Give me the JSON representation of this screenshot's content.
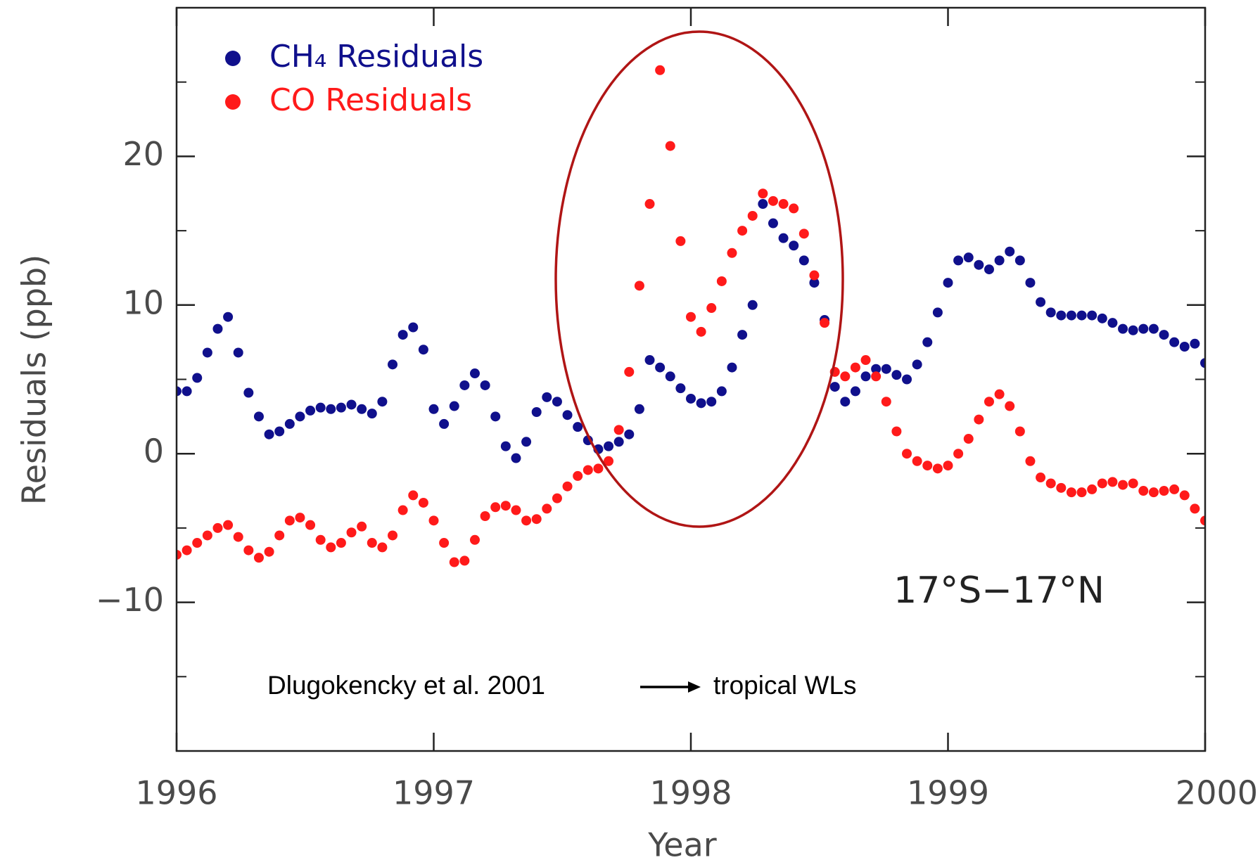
{
  "chart_data": {
    "type": "scatter",
    "xlabel": "Year",
    "ylabel": "Residuals (ppb)",
    "annotations": [
      "17°S−17°N",
      "Dlugokencky et al. 2001",
      "tropical WLs"
    ],
    "xlim": [
      1996,
      2000
    ],
    "xticks": [
      1996,
      1997,
      1998,
      1999,
      2000
    ],
    "ylim": [
      -20,
      30
    ],
    "yticks": [
      {
        "value": -10,
        "label": "−10"
      },
      0,
      10,
      20
    ],
    "yminorticks": [
      -15,
      -5,
      5,
      15,
      25
    ],
    "grid": false,
    "legend": "upper left",
    "x": [
      1996.0,
      1996.04,
      1996.08,
      1996.12,
      1996.16,
      1996.2,
      1996.24,
      1996.28,
      1996.32,
      1996.36,
      1996.4,
      1996.44,
      1996.48,
      1996.52,
      1996.56,
      1996.6,
      1996.64,
      1996.68,
      1996.72,
      1996.76,
      1996.8,
      1996.84,
      1996.88,
      1996.92,
      1996.96,
      1997.0,
      1997.04,
      1997.08,
      1997.12,
      1997.16,
      1997.2,
      1997.24,
      1997.28,
      1997.32,
      1997.36,
      1997.4,
      1997.44,
      1997.48,
      1997.52,
      1997.56,
      1997.6,
      1997.64,
      1997.68,
      1997.72,
      1997.76,
      1997.8,
      1997.84,
      1997.88,
      1997.92,
      1997.96,
      1998.0,
      1998.04,
      1998.08,
      1998.12,
      1998.16,
      1998.2,
      1998.24,
      1998.28,
      1998.32,
      1998.36,
      1998.4,
      1998.44,
      1998.48,
      1998.52,
      1998.56,
      1998.6,
      1998.64,
      1998.68,
      1998.72,
      1998.76,
      1998.8,
      1998.84,
      1998.88,
      1998.92,
      1998.96,
      1999.0,
      1999.04,
      1999.08,
      1999.12,
      1999.16,
      1999.2,
      1999.24,
      1999.28,
      1999.32,
      1999.36,
      1999.4,
      1999.44,
      1999.48,
      1999.52,
      1999.56,
      1999.6,
      1999.64,
      1999.68,
      1999.72,
      1999.76,
      1999.8,
      1999.84,
      1999.88,
      1999.92,
      1999.96,
      2000.0
    ],
    "series": [
      {
        "name": "CH₄ Residuals",
        "color": "#10108c",
        "values": [
          4.2,
          4.2,
          5.1,
          6.8,
          8.4,
          9.2,
          6.8,
          4.1,
          2.5,
          1.3,
          1.5,
          2.0,
          2.5,
          2.9,
          3.1,
          3.0,
          3.1,
          3.3,
          3.0,
          2.7,
          3.5,
          6.0,
          8.0,
          8.5,
          7.0,
          3.0,
          2.0,
          3.2,
          4.6,
          5.4,
          4.6,
          2.5,
          0.5,
          -0.3,
          0.8,
          2.8,
          3.8,
          3.5,
          2.6,
          1.8,
          0.9,
          0.3,
          0.5,
          0.8,
          1.3,
          3.0,
          6.3,
          5.8,
          5.2,
          4.4,
          3.7,
          3.4,
          3.5,
          4.2,
          5.8,
          8.0,
          10.0,
          16.8,
          15.5,
          14.5,
          14.0,
          13.0,
          11.5,
          9.0,
          4.5,
          3.5,
          4.2,
          5.2,
          5.7,
          5.7,
          5.3,
          5.0,
          6.0,
          7.5,
          9.5,
          11.5,
          13.0,
          13.2,
          12.7,
          12.4,
          13.0,
          13.6,
          13.0,
          11.5,
          10.2,
          9.5,
          9.3,
          9.3,
          9.3,
          9.3,
          9.1,
          8.8,
          8.4,
          8.3,
          8.4,
          8.4,
          8.0,
          7.5,
          7.2,
          7.4,
          6.1
        ]
      },
      {
        "name": "CO Residuals",
        "color": "#ff1a1a",
        "values": [
          -6.8,
          -6.5,
          -6.0,
          -5.5,
          -5.0,
          -4.8,
          -5.6,
          -6.5,
          -7.0,
          -6.6,
          -5.5,
          -4.5,
          -4.3,
          -4.8,
          -5.8,
          -6.3,
          -6.0,
          -5.3,
          -4.9,
          -6.0,
          -6.3,
          -5.5,
          -3.8,
          -2.8,
          -3.3,
          -4.5,
          -6.0,
          -7.3,
          -7.2,
          -5.8,
          -4.2,
          -3.6,
          -3.5,
          -3.8,
          -4.5,
          -4.4,
          -3.7,
          -3.0,
          -2.2,
          -1.5,
          -1.1,
          -1.0,
          -0.5,
          1.6,
          5.5,
          11.3,
          16.8,
          25.8,
          20.7,
          14.3,
          9.2,
          8.2,
          9.8,
          11.6,
          13.5,
          15.0,
          16.0,
          17.5,
          17.0,
          16.8,
          16.5,
          14.8,
          12.0,
          8.8,
          5.5,
          5.2,
          5.8,
          6.3,
          5.2,
          3.5,
          1.5,
          0.0,
          -0.5,
          -0.8,
          -1.0,
          -0.8,
          0.0,
          1.0,
          2.3,
          3.5,
          4.0,
          3.2,
          1.5,
          -0.5,
          -1.6,
          -2.0,
          -2.3,
          -2.6,
          -2.6,
          -2.4,
          -2.0,
          -1.9,
          -2.1,
          -2.0,
          -2.5,
          -2.6,
          -2.5,
          -2.4,
          -2.8,
          -3.7,
          -4.5
        ]
      }
    ]
  }
}
